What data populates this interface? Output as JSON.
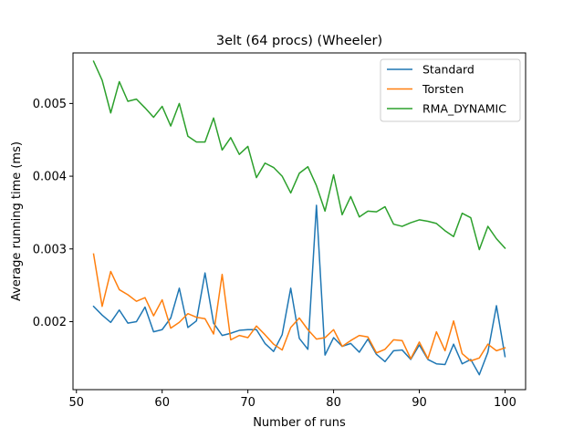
{
  "chart_data": {
    "type": "line",
    "title": "3elt (64 procs) (Wheeler)",
    "xlabel": "Number of runs",
    "ylabel": "Average running time (ms)",
    "xlim": [
      49.6,
      102.4
    ],
    "ylim": [
      0.001065,
      0.005695
    ],
    "xticks": [
      50,
      60,
      70,
      80,
      90,
      100
    ],
    "xtick_labels": [
      "50",
      "60",
      "70",
      "80",
      "90",
      "100"
    ],
    "yticks": [
      0.002,
      0.003,
      0.004,
      0.005
    ],
    "ytick_labels": [
      "0.002",
      "0.003",
      "0.004",
      "0.005"
    ],
    "grid": false,
    "legend_position": "top-right",
    "x": [
      52,
      53,
      54,
      55,
      56,
      57,
      58,
      59,
      60,
      61,
      62,
      63,
      64,
      65,
      66,
      67,
      68,
      69,
      70,
      71,
      72,
      73,
      74,
      75,
      76,
      77,
      78,
      79,
      80,
      81,
      82,
      83,
      84,
      85,
      86,
      87,
      88,
      89,
      90,
      91,
      92,
      93,
      94,
      95,
      96,
      97,
      98,
      99,
      100
    ],
    "series": [
      {
        "name": "Standard",
        "color": "#1f77b4",
        "values": [
          0.00221,
          0.00209,
          0.00199,
          0.00216,
          0.00198,
          0.002,
          0.0022,
          0.00186,
          0.00189,
          0.00205,
          0.00246,
          0.00192,
          0.00201,
          0.00267,
          0.00198,
          0.00181,
          0.00184,
          0.00188,
          0.00189,
          0.00189,
          0.0017,
          0.00159,
          0.00182,
          0.00246,
          0.00177,
          0.00162,
          0.0036,
          0.00154,
          0.00178,
          0.00166,
          0.0017,
          0.00158,
          0.00176,
          0.00155,
          0.00145,
          0.0016,
          0.00161,
          0.00148,
          0.00168,
          0.00148,
          0.00142,
          0.00141,
          0.00169,
          0.00142,
          0.00148,
          0.00127,
          0.00158,
          0.00222,
          0.00152
        ]
      },
      {
        "name": "Torsten",
        "color": "#ff7f0e",
        "values": [
          0.00293,
          0.00221,
          0.00269,
          0.00244,
          0.00237,
          0.00228,
          0.00233,
          0.00208,
          0.0023,
          0.00191,
          0.00199,
          0.00211,
          0.00206,
          0.00204,
          0.00183,
          0.00265,
          0.00175,
          0.00181,
          0.00178,
          0.00194,
          0.00182,
          0.00169,
          0.00161,
          0.00192,
          0.00205,
          0.00189,
          0.00176,
          0.00178,
          0.00189,
          0.00166,
          0.00174,
          0.00181,
          0.00179,
          0.00157,
          0.00162,
          0.00175,
          0.00174,
          0.00149,
          0.00172,
          0.00149,
          0.00186,
          0.0016,
          0.00201,
          0.00156,
          0.00146,
          0.0015,
          0.00169,
          0.0016,
          0.00164
        ]
      },
      {
        "name": "RMA_DYNAMIC",
        "color": "#2ca02c",
        "values": [
          0.00558,
          0.00532,
          0.00487,
          0.0053,
          0.00503,
          0.00506,
          0.00494,
          0.00481,
          0.00496,
          0.00469,
          0.005,
          0.00455,
          0.00447,
          0.00447,
          0.0048,
          0.00436,
          0.00453,
          0.0043,
          0.00441,
          0.00398,
          0.00418,
          0.00412,
          0.004,
          0.00377,
          0.00404,
          0.00413,
          0.00387,
          0.00352,
          0.00402,
          0.00347,
          0.00372,
          0.00344,
          0.00352,
          0.00351,
          0.00358,
          0.00334,
          0.00331,
          0.00336,
          0.0034,
          0.00338,
          0.00335,
          0.00325,
          0.00317,
          0.00349,
          0.00343,
          0.00299,
          0.00331,
          0.00314,
          0.00301
        ]
      }
    ]
  }
}
